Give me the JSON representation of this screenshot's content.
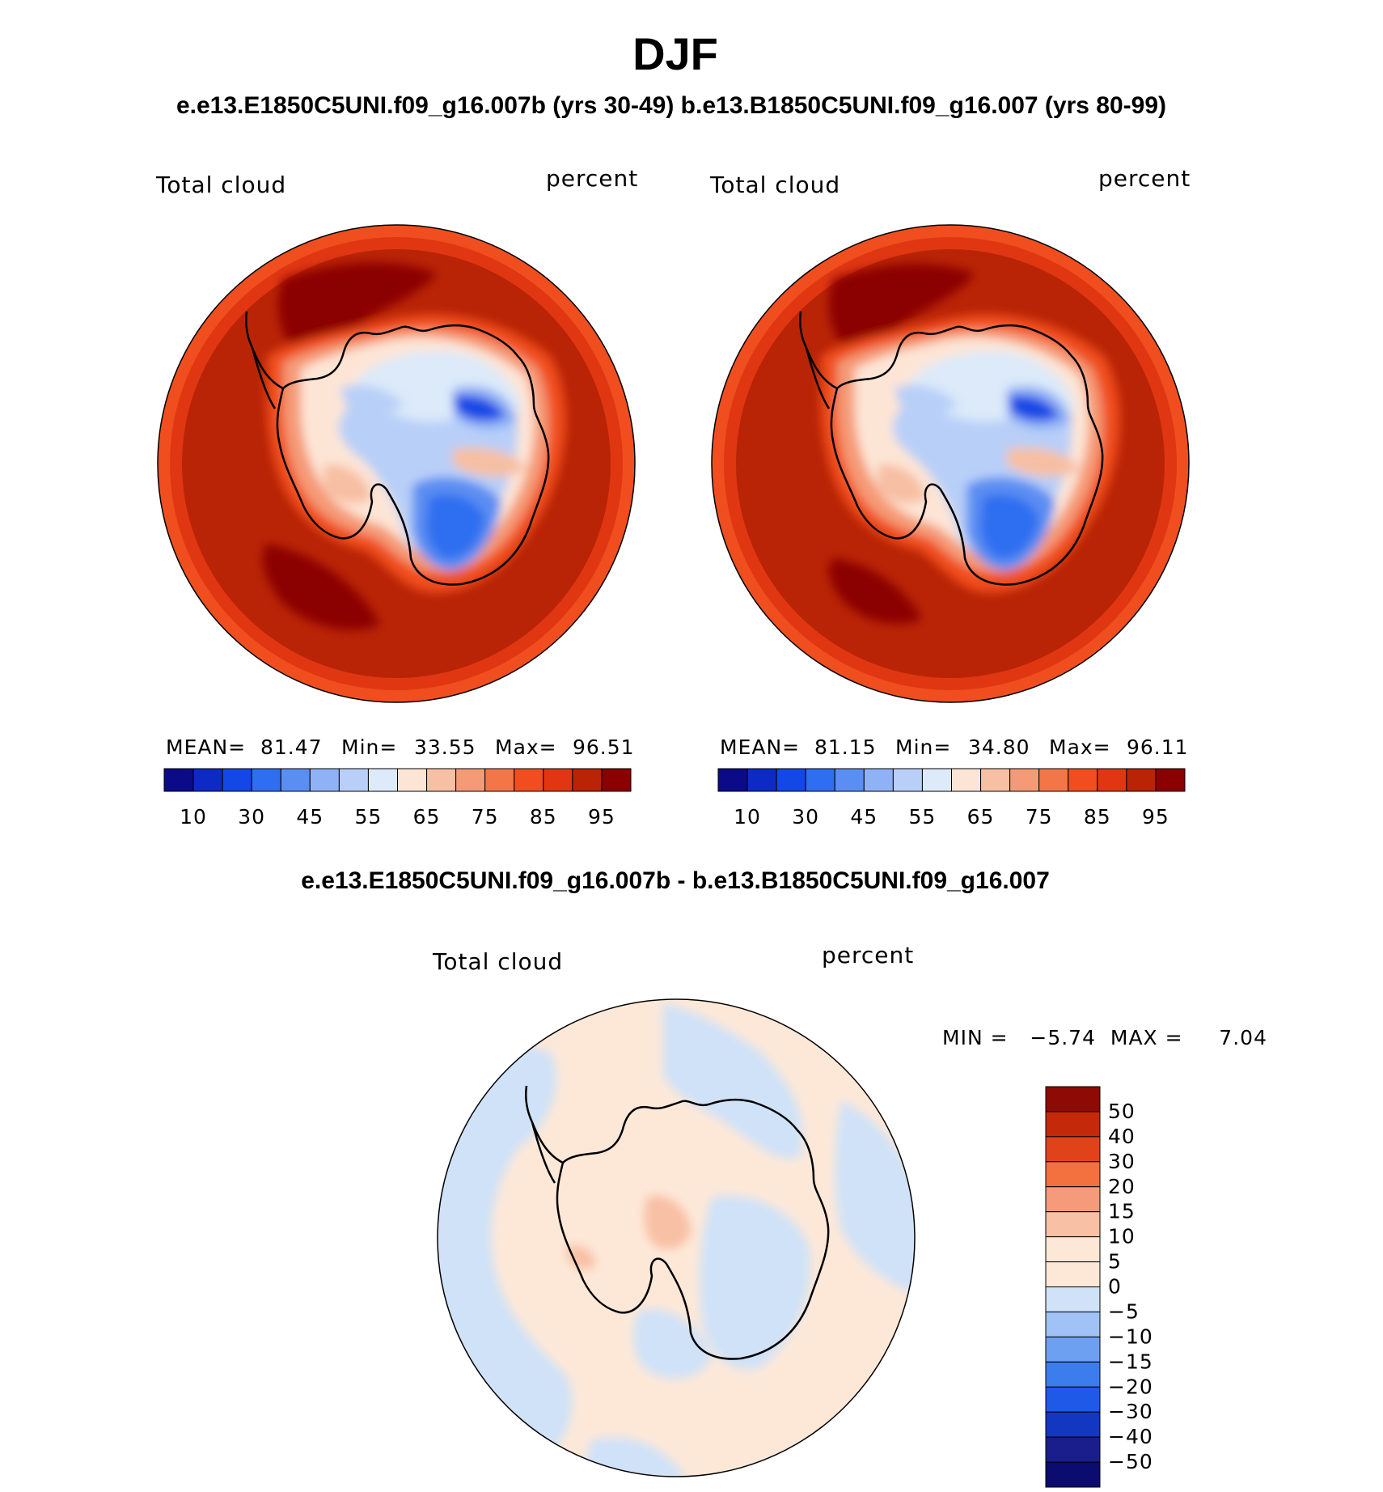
{
  "title": "DJF",
  "subtitle": "e.e13.E1850C5UNI.f09_g16.007b (yrs 30-49)  b.e13.B1850C5UNI.f09_g16.007 (yrs 80-99)",
  "diff_title": "e.e13.E1850C5UNI.f09_g16.007b - b.e13.B1850C5UNI.f09_g16.007",
  "colors": {
    "abs_palette": [
      "#0b0b8a",
      "#0d2bc4",
      "#1448e6",
      "#2f6ef0",
      "#5b8ef2",
      "#8fb1f5",
      "#b8cff8",
      "#dceaf9",
      "#fde5d6",
      "#f7bfa3",
      "#f59a76",
      "#f27648",
      "#f04e1f",
      "#e03712",
      "#b92406",
      "#8b0000"
    ],
    "diff_palette": [
      "#1a1e8c",
      "#1238c2",
      "#1f59e8",
      "#3b7ded",
      "#6ea0f2",
      "#a0c2f6",
      "#cfe2f8",
      "#fde8d8",
      "#f8c0a4",
      "#f59b79",
      "#f3703f",
      "#e0431a",
      "#c22a0a",
      "#8e0a04"
    ],
    "coast": "#000000",
    "background": "#ffffff"
  },
  "panels": [
    {
      "variable": "Total cloud",
      "units": "percent",
      "mean_label": "MEAN=",
      "mean": "81.47",
      "min_label": "Min=",
      "min": "33.55",
      "max_label": "Max=",
      "max": "96.51",
      "colorbar_ticks": [
        "10",
        "30",
        "45",
        "55",
        "65",
        "75",
        "85",
        "95"
      ]
    },
    {
      "variable": "Total cloud",
      "units": "percent",
      "mean_label": "MEAN=",
      "mean": "81.15",
      "min_label": "Min=",
      "min": "34.80",
      "max_label": "Max=",
      "max": "96.11",
      "colorbar_ticks": [
        "10",
        "30",
        "45",
        "55",
        "65",
        "75",
        "85",
        "95"
      ]
    }
  ],
  "diff": {
    "variable": "Total cloud",
    "units": "percent",
    "minmax_label": "MIN =   −5.74  MAX =     7.04",
    "colorbar_ticks": [
      "50",
      "40",
      "30",
      "20",
      "15",
      "10",
      "5",
      "0",
      "−5",
      "−10",
      "−15",
      "−20",
      "−30",
      "−40",
      "−50"
    ]
  }
}
